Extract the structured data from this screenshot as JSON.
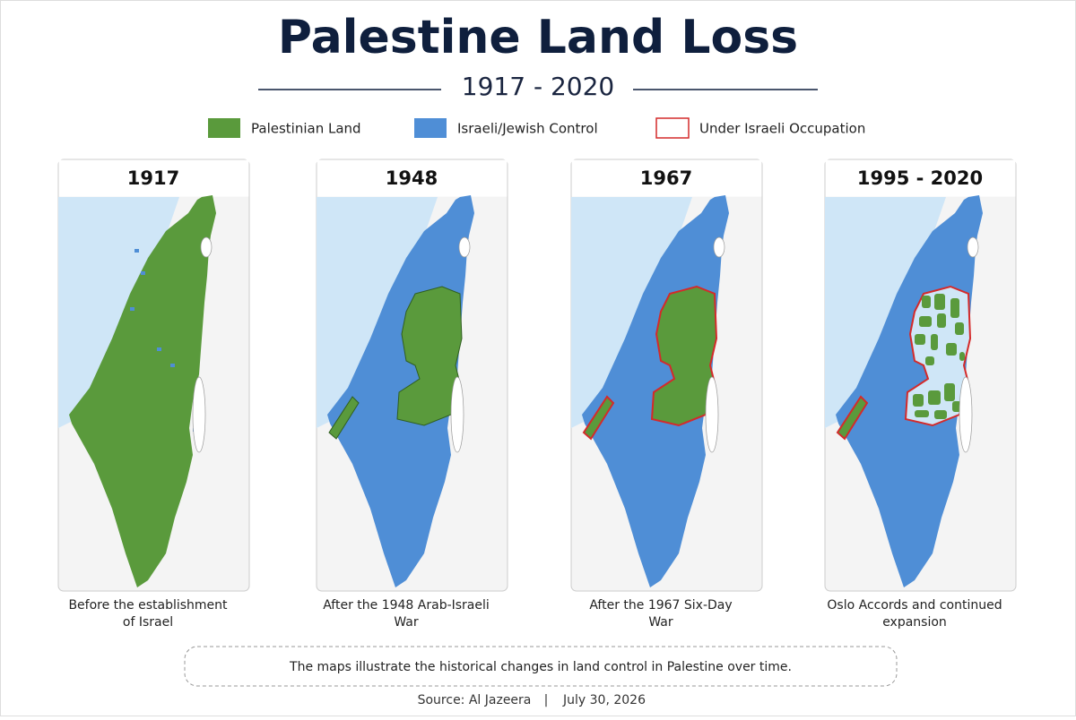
{
  "header": {
    "title": "Palestine Land Loss",
    "subtitle": "1917 - 2020"
  },
  "legend": [
    {
      "label": "Palestinian Land",
      "color": "#5a9a3c"
    },
    {
      "label": "Israeli/Jewish Control",
      "color": "#4f8ed6"
    },
    {
      "label": "Under Israeli Occupation",
      "color": "#d42a2a"
    }
  ],
  "panels": [
    {
      "year": "1917",
      "caption": [
        "Before the establishment",
        "of Israel"
      ]
    },
    {
      "year": "1948",
      "caption": [
        "After the 1948 Arab-Israeli",
        "War"
      ]
    },
    {
      "year": "1967",
      "caption": [
        "After the 1967 Six-Day",
        "War"
      ]
    },
    {
      "year": "1995 - 2020",
      "caption": [
        "Oslo Accords and continued",
        "expansion"
      ]
    }
  ],
  "note": "The maps illustrate the historical changes in land control in Palestine over time.",
  "footer": {
    "source": "Source: Al Jazeera",
    "separator": "|",
    "date": "July 30, 2026"
  }
}
